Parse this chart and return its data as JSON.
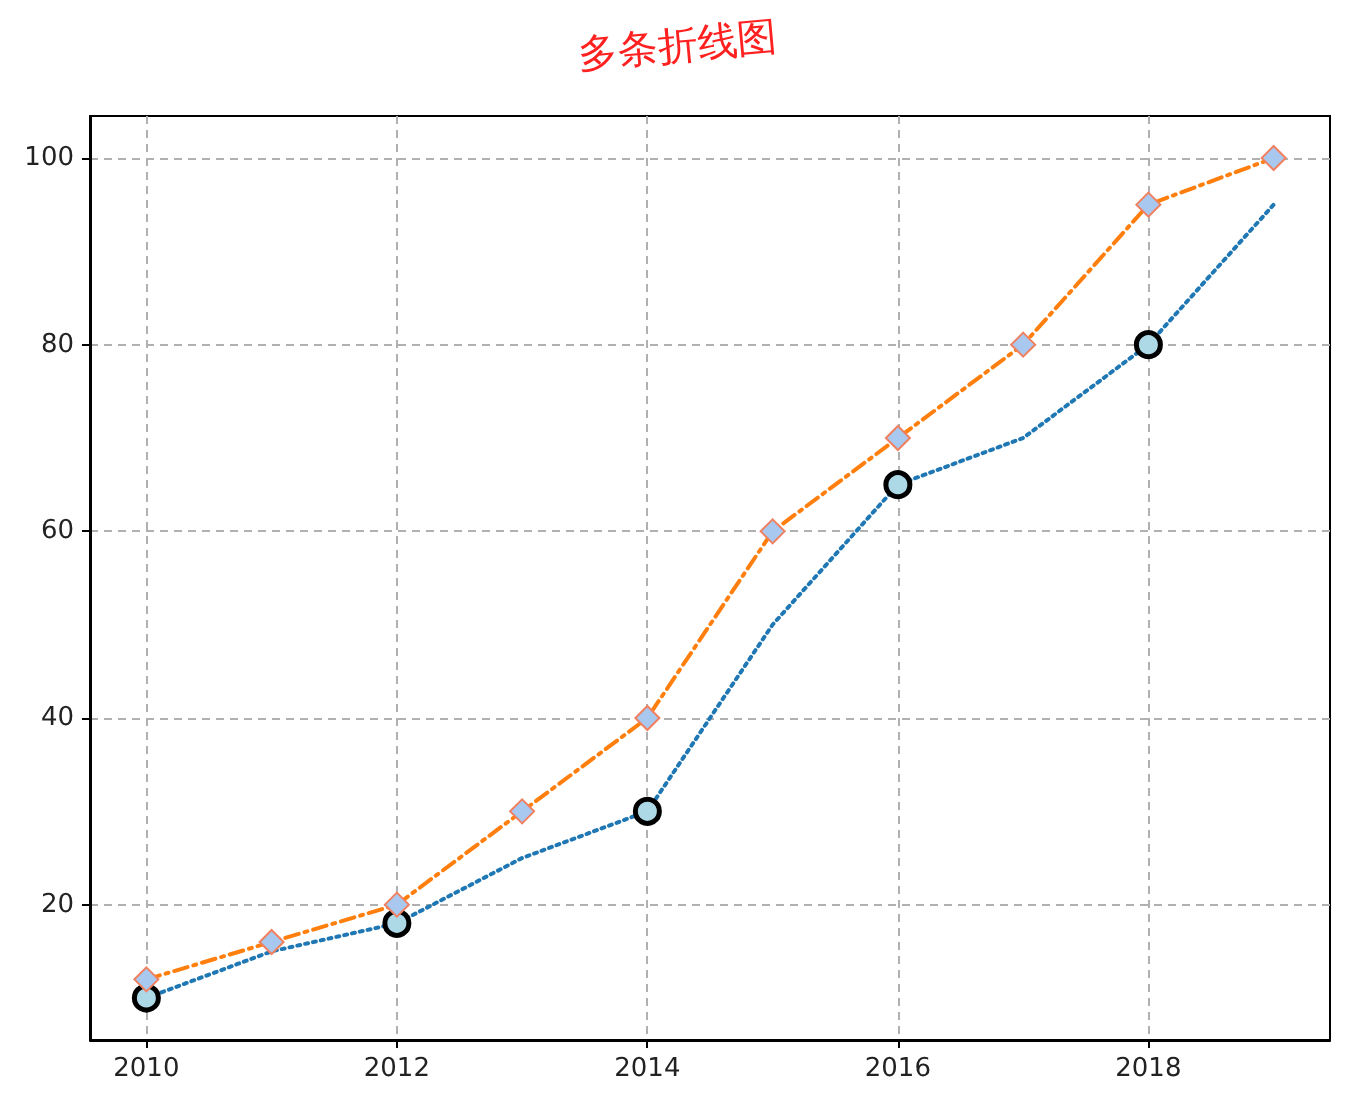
{
  "chart_data": {
    "type": "line",
    "title": "多条折线图",
    "xlim": [
      2009.55,
      2019.45
    ],
    "xticks": [
      2010,
      2012,
      2014,
      2016,
      2018
    ],
    "ylim": [
      5.5,
      104.5
    ],
    "yticks": [
      20,
      40,
      60,
      80,
      100
    ],
    "grid": true,
    "series": [
      {
        "type": "line",
        "color": "#1f77b4",
        "line_style": "dotted",
        "marker": "none",
        "x": [
          2010,
          2011,
          2012,
          2013,
          2014,
          2015,
          2016,
          2017,
          2018,
          2019
        ],
        "values": [
          10,
          15,
          18,
          25,
          30,
          50,
          65,
          70,
          80,
          95
        ]
      },
      {
        "type": "scatter",
        "color": "#add8e6",
        "marker": "circle",
        "x": [
          2010,
          2012,
          2014,
          2016,
          2018
        ],
        "values": [
          10,
          18,
          30,
          65,
          80
        ]
      },
      {
        "type": "line",
        "color": "#ff7f0e",
        "line_style": "dashed",
        "marker": "diamond",
        "x": [
          2010,
          2011,
          2012,
          2013,
          2014,
          2015,
          2016,
          2017,
          2018,
          2019
        ],
        "values": [
          12,
          16,
          20,
          30,
          40,
          60,
          70,
          80,
          95,
          100
        ]
      }
    ]
  }
}
